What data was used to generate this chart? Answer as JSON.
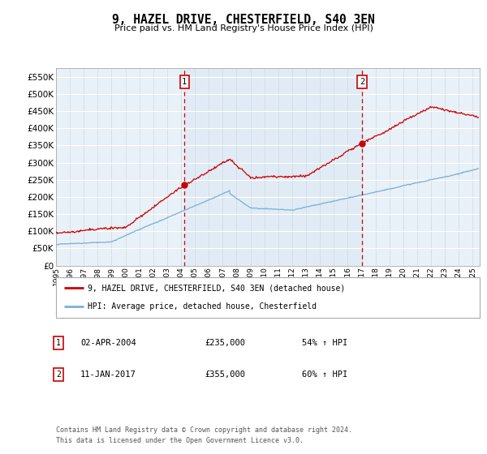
{
  "title": "9, HAZEL DRIVE, CHESTERFIELD, S40 3EN",
  "subtitle": "Price paid vs. HM Land Registry's House Price Index (HPI)",
  "ylabel_vals": [
    0,
    50000,
    100000,
    150000,
    200000,
    250000,
    300000,
    350000,
    400000,
    450000,
    500000,
    550000
  ],
  "ylim": [
    0,
    575000
  ],
  "xlim_start": 1995.0,
  "xlim_end": 2025.5,
  "bg_color": "#e8f0f8",
  "bg_color_between": "#dce8f4",
  "fig_bg": "#ffffff",
  "sale1_x": 2004.25,
  "sale1_y": 235000,
  "sale1_label": "02-APR-2004",
  "sale1_price": "£235,000",
  "sale1_hpi": "54% ↑ HPI",
  "sale2_x": 2017.04,
  "sale2_y": 355000,
  "sale2_label": "11-JAN-2017",
  "sale2_price": "£355,000",
  "sale2_hpi": "60% ↑ HPI",
  "red_line_color": "#cc0000",
  "blue_line_color": "#7ab0d4",
  "vline_color": "#cc0000",
  "dot_color": "#cc0000",
  "legend_label_red": "9, HAZEL DRIVE, CHESTERFIELD, S40 3EN (detached house)",
  "legend_label_blue": "HPI: Average price, detached house, Chesterfield",
  "footer": "Contains HM Land Registry data © Crown copyright and database right 2024.\nThis data is licensed under the Open Government Licence v3.0.",
  "xticks": [
    1995,
    1996,
    1997,
    1998,
    1999,
    2000,
    2001,
    2002,
    2003,
    2004,
    2005,
    2006,
    2007,
    2008,
    2009,
    2010,
    2011,
    2012,
    2013,
    2014,
    2015,
    2016,
    2017,
    2018,
    2019,
    2020,
    2021,
    2022,
    2023,
    2024,
    2025
  ]
}
